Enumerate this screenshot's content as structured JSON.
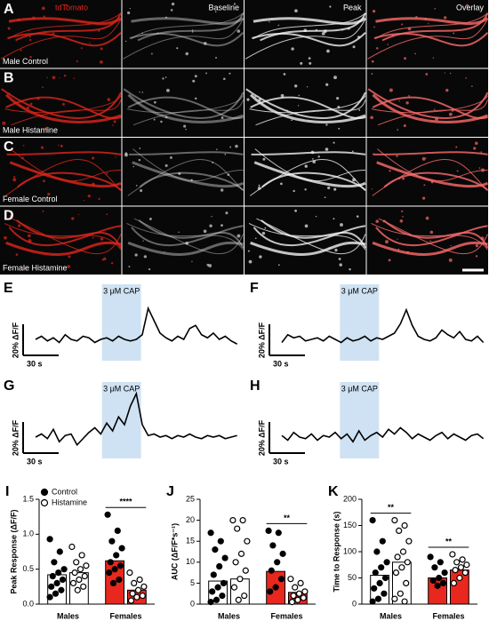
{
  "images": {
    "columns": [
      "tdTomato",
      "Baseline",
      "Peak",
      "Overlay"
    ],
    "rows": [
      {
        "panel": "A",
        "label": "Male Control"
      },
      {
        "panel": "B",
        "label": "Male Histamine"
      },
      {
        "panel": "C",
        "label": "Female Control"
      },
      {
        "panel": "D",
        "label": "Female Histamine"
      }
    ]
  },
  "chart_data": [
    {
      "type": "line",
      "panel": "E",
      "annotation": "3 μM CAP",
      "stimulus": [
        56,
        89
      ],
      "scale_y": {
        "value": 20,
        "label": "20% ΔF/F"
      },
      "scale_x": {
        "value": 30,
        "label": "30 s"
      },
      "color": "#000000",
      "x": [
        0,
        5,
        10,
        15,
        20,
        25,
        30,
        35,
        40,
        45,
        50,
        55,
        60,
        65,
        70,
        75,
        80,
        85,
        90,
        95,
        100,
        105,
        110,
        115,
        120,
        125,
        130,
        135,
        140,
        145,
        150,
        155,
        160,
        165,
        170
      ],
      "values": [
        0,
        2,
        -1,
        1,
        -2,
        3,
        0,
        -1,
        2,
        1,
        -2,
        0,
        1,
        -1,
        2,
        0,
        -1,
        0,
        3,
        20,
        12,
        4,
        1,
        -1,
        2,
        0,
        7,
        9,
        3,
        1,
        4,
        0,
        2,
        -1,
        -3
      ]
    },
    {
      "type": "line",
      "panel": "F",
      "annotation": "3 μM CAP",
      "stimulus": [
        49,
        82
      ],
      "scale_y": {
        "value": 20,
        "label": "20% ΔF/F"
      },
      "scale_x": {
        "value": 30,
        "label": "30 s"
      },
      "color": "#000000",
      "x": [
        0,
        5,
        10,
        15,
        20,
        25,
        30,
        35,
        40,
        45,
        50,
        55,
        60,
        65,
        70,
        75,
        80,
        85,
        90,
        95,
        100,
        105,
        110,
        115,
        120,
        125,
        130,
        135,
        140,
        145,
        150,
        155,
        160,
        165,
        170
      ],
      "values": [
        -2,
        3,
        1,
        2,
        -1,
        0,
        1,
        -1,
        2,
        0,
        -2,
        1,
        -1,
        0,
        2,
        -1,
        1,
        0,
        2,
        4,
        10,
        19,
        9,
        2,
        0,
        -1,
        1,
        6,
        3,
        1,
        5,
        0,
        -1,
        2,
        -2
      ]
    },
    {
      "type": "line",
      "panel": "G",
      "annotation": "3 μM CAP",
      "stimulus": [
        56,
        89
      ],
      "scale_y": {
        "value": 20,
        "label": "20% ΔF/F"
      },
      "scale_x": {
        "value": 30,
        "label": "30 s"
      },
      "color": "#000000",
      "x": [
        0,
        5,
        10,
        15,
        20,
        25,
        30,
        35,
        40,
        45,
        50,
        55,
        60,
        65,
        70,
        75,
        80,
        85,
        90,
        95,
        100,
        105,
        110,
        115,
        120,
        125,
        130,
        135,
        140,
        145,
        150,
        155,
        160,
        165,
        170
      ],
      "values": [
        0,
        2,
        -1,
        5,
        -3,
        1,
        2,
        -5,
        -1,
        3,
        6,
        2,
        9,
        4,
        13,
        8,
        20,
        28,
        8,
        1,
        2,
        0,
        1,
        -1,
        1,
        0,
        2,
        0,
        -1,
        1,
        0,
        1,
        -1,
        0,
        1
      ]
    },
    {
      "type": "line",
      "panel": "H",
      "annotation": "3 μM CAP",
      "stimulus": [
        49,
        82
      ],
      "scale_y": {
        "value": 20,
        "label": "20% ΔF/F"
      },
      "scale_x": {
        "value": 30,
        "label": "30 s"
      },
      "color": "#000000",
      "x": [
        0,
        5,
        10,
        15,
        20,
        25,
        30,
        35,
        40,
        45,
        50,
        55,
        60,
        65,
        70,
        75,
        80,
        85,
        90,
        95,
        100,
        105,
        110,
        115,
        120,
        125,
        130,
        135,
        140,
        145,
        150,
        155,
        160,
        165,
        170
      ],
      "values": [
        1,
        -2,
        3,
        0,
        -1,
        2,
        -2,
        1,
        0,
        3,
        -1,
        2,
        -3,
        4,
        -2,
        1,
        3,
        0,
        5,
        2,
        6,
        3,
        -1,
        2,
        0,
        -2,
        1,
        3,
        -1,
        2,
        0,
        -2,
        1,
        2,
        -1
      ]
    },
    {
      "type": "bar",
      "panel": "I",
      "ylabel": "Peak Response (ΔF/F)",
      "categories": [
        "Males",
        "Females"
      ],
      "bar_colors": [
        "#ffffff",
        "#e8281e"
      ],
      "ylim": [
        0,
        1.5
      ],
      "yticks": [
        {
          "value": 0,
          "label": "0.0"
        },
        0.5,
        {
          "value": 1,
          "label": "1.0"
        },
        1.5
      ],
      "legend": "upper-left",
      "significance": [
        null,
        "****"
      ],
      "series": [
        {
          "name": "Control",
          "marker": "filled",
          "values": [
            0.42,
            0.62
          ],
          "points": [
            [
              0.93,
              0.75,
              0.6,
              0.5,
              0.45,
              0.4,
              0.35,
              0.3,
              0.25,
              0.2,
              0.15,
              0.1
            ],
            [
              1.28,
              1.05,
              0.9,
              0.8,
              0.7,
              0.6,
              0.55,
              0.5,
              0.45,
              0.35,
              0.3
            ]
          ]
        },
        {
          "name": "Histamine",
          "marker": "open",
          "values": [
            0.45,
            0.2
          ],
          "points": [
            [
              0.82,
              0.7,
              0.6,
              0.55,
              0.5,
              0.45,
              0.4,
              0.35,
              0.3,
              0.25,
              0.2
            ],
            [
              0.45,
              0.35,
              0.3,
              0.25,
              0.2,
              0.15,
              0.12,
              0.1,
              0.05
            ]
          ]
        }
      ]
    },
    {
      "type": "bar",
      "panel": "J",
      "ylabel": "AUC (ΔF/F*s⁻¹)",
      "categories": [
        "Males",
        "Females"
      ],
      "bar_colors": [
        "#ffffff",
        "#e8281e"
      ],
      "ylim": [
        0,
        25
      ],
      "yticks": [
        0,
        5,
        10,
        15,
        20,
        25
      ],
      "significance": [
        null,
        "**"
      ],
      "series": [
        {
          "name": "Control",
          "marker": "filled",
          "values": [
            5.5,
            7.8
          ],
          "points": [
            [
              17,
              15,
              13,
              11,
              9,
              7,
              5,
              4,
              3,
              2,
              1,
              0.5
            ],
            [
              17.5,
              17,
              14,
              12,
              10,
              8,
              6,
              4,
              3
            ]
          ]
        },
        {
          "name": "Histamine",
          "marker": "open",
          "values": [
            6,
            2.8
          ],
          "points": [
            [
              20,
              20,
              18,
              15,
              12,
              10,
              8,
              6,
              4,
              2,
              1
            ],
            [
              6,
              5,
              4,
              3,
              2.5,
              2,
              1.5,
              1,
              0.5
            ]
          ]
        }
      ]
    },
    {
      "type": "bar",
      "panel": "K",
      "ylabel": "Time to Response (s)",
      "categories": [
        "Males",
        "Females"
      ],
      "bar_colors": [
        "#ffffff",
        "#e8281e"
      ],
      "ylim": [
        0,
        200
      ],
      "yticks": [
        0,
        50,
        100,
        150,
        200
      ],
      "significance": [
        "**",
        "**"
      ],
      "series": [
        {
          "name": "Control",
          "marker": "filled",
          "values": [
            55,
            50
          ],
          "points": [
            [
              160,
              120,
              100,
              80,
              70,
              60,
              50,
              40,
              30,
              20,
              10,
              5
            ],
            [
              90,
              80,
              70,
              60,
              50,
              45,
              40,
              35
            ]
          ]
        },
        {
          "name": "Histamine",
          "marker": "open",
          "values": [
            80,
            65
          ],
          "points": [
            [
              160,
              150,
              140,
              120,
              100,
              90,
              80,
              70,
              60,
              40,
              20,
              10,
              5
            ],
            [
              95,
              85,
              80,
              75,
              70,
              65,
              60,
              50,
              40
            ]
          ]
        }
      ]
    }
  ]
}
